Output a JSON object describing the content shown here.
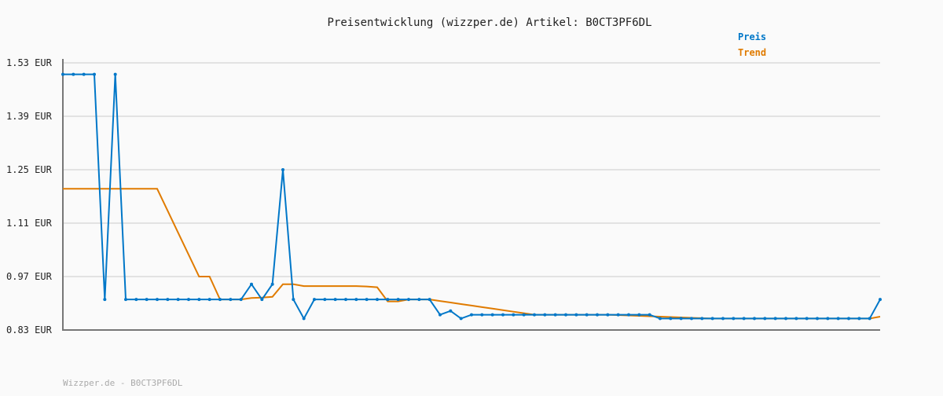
{
  "chart_data": {
    "type": "line",
    "title": "Preisentwicklung (wizzper.de) Artikel: B0CT3PF6DL",
    "footer": "Wizzper.de - B0CT3PF6DL",
    "ylim": [
      0.83,
      1.53
    ],
    "yticks": [
      "1.53 EUR",
      "1.39 EUR",
      "1.25 EUR",
      "1.11 EUR",
      "0.97 EUR",
      "0.83 EUR"
    ],
    "ytick_values": [
      1.53,
      1.39,
      1.25,
      1.11,
      0.97,
      0.83
    ],
    "grid": true,
    "legend_placement": "top-right",
    "series": [
      {
        "name": "Preis",
        "color": "#0077c8",
        "markers": true,
        "values": [
          1.5,
          1.5,
          1.5,
          1.5,
          0.91,
          1.5,
          0.91,
          0.91,
          0.91,
          0.91,
          0.91,
          0.91,
          0.91,
          0.91,
          0.91,
          0.91,
          0.91,
          0.91,
          0.95,
          0.91,
          0.95,
          1.25,
          0.91,
          0.86,
          0.91,
          0.91,
          0.91,
          0.91,
          0.91,
          0.91,
          0.91,
          0.91,
          0.91,
          0.91,
          0.91,
          0.91,
          0.87,
          0.88,
          0.86,
          0.87,
          0.87,
          0.87,
          0.87,
          0.87,
          0.87,
          0.87,
          0.87,
          0.87,
          0.87,
          0.87,
          0.87,
          0.87,
          0.87,
          0.87,
          0.87,
          0.87,
          0.87,
          0.86,
          0.86,
          0.86,
          0.86,
          0.86,
          0.86,
          0.86,
          0.86,
          0.86,
          0.86,
          0.86,
          0.86,
          0.86,
          0.86,
          0.86,
          0.86,
          0.86,
          0.86,
          0.86,
          0.86,
          0.86,
          0.91
        ]
      },
      {
        "name": "Trend",
        "color": "#e07b00",
        "markers": false,
        "values": [
          1.2,
          1.2,
          1.2,
          1.2,
          1.2,
          1.2,
          1.2,
          1.2,
          1.2,
          1.2,
          1.1425,
          1.085,
          1.0275,
          0.97,
          0.97,
          0.91,
          0.91,
          0.91,
          0.914,
          0.915,
          0.917,
          0.95,
          0.95,
          0.945,
          0.945,
          0.945,
          0.945,
          0.945,
          0.945,
          0.944,
          0.942,
          0.905,
          0.905,
          0.91,
          0.91,
          0.91,
          0.906,
          0.902,
          0.898,
          0.894,
          0.89,
          0.886,
          0.882,
          0.878,
          0.874,
          0.87,
          0.87,
          0.87,
          0.87,
          0.87,
          0.87,
          0.87,
          0.87,
          0.869,
          0.868,
          0.867,
          0.866,
          0.865,
          0.864,
          0.863,
          0.862,
          0.861,
          0.86,
          0.86,
          0.86,
          0.86,
          0.86,
          0.86,
          0.86,
          0.86,
          0.86,
          0.86,
          0.86,
          0.86,
          0.86,
          0.86,
          0.86,
          0.86,
          0.865
        ]
      }
    ]
  }
}
